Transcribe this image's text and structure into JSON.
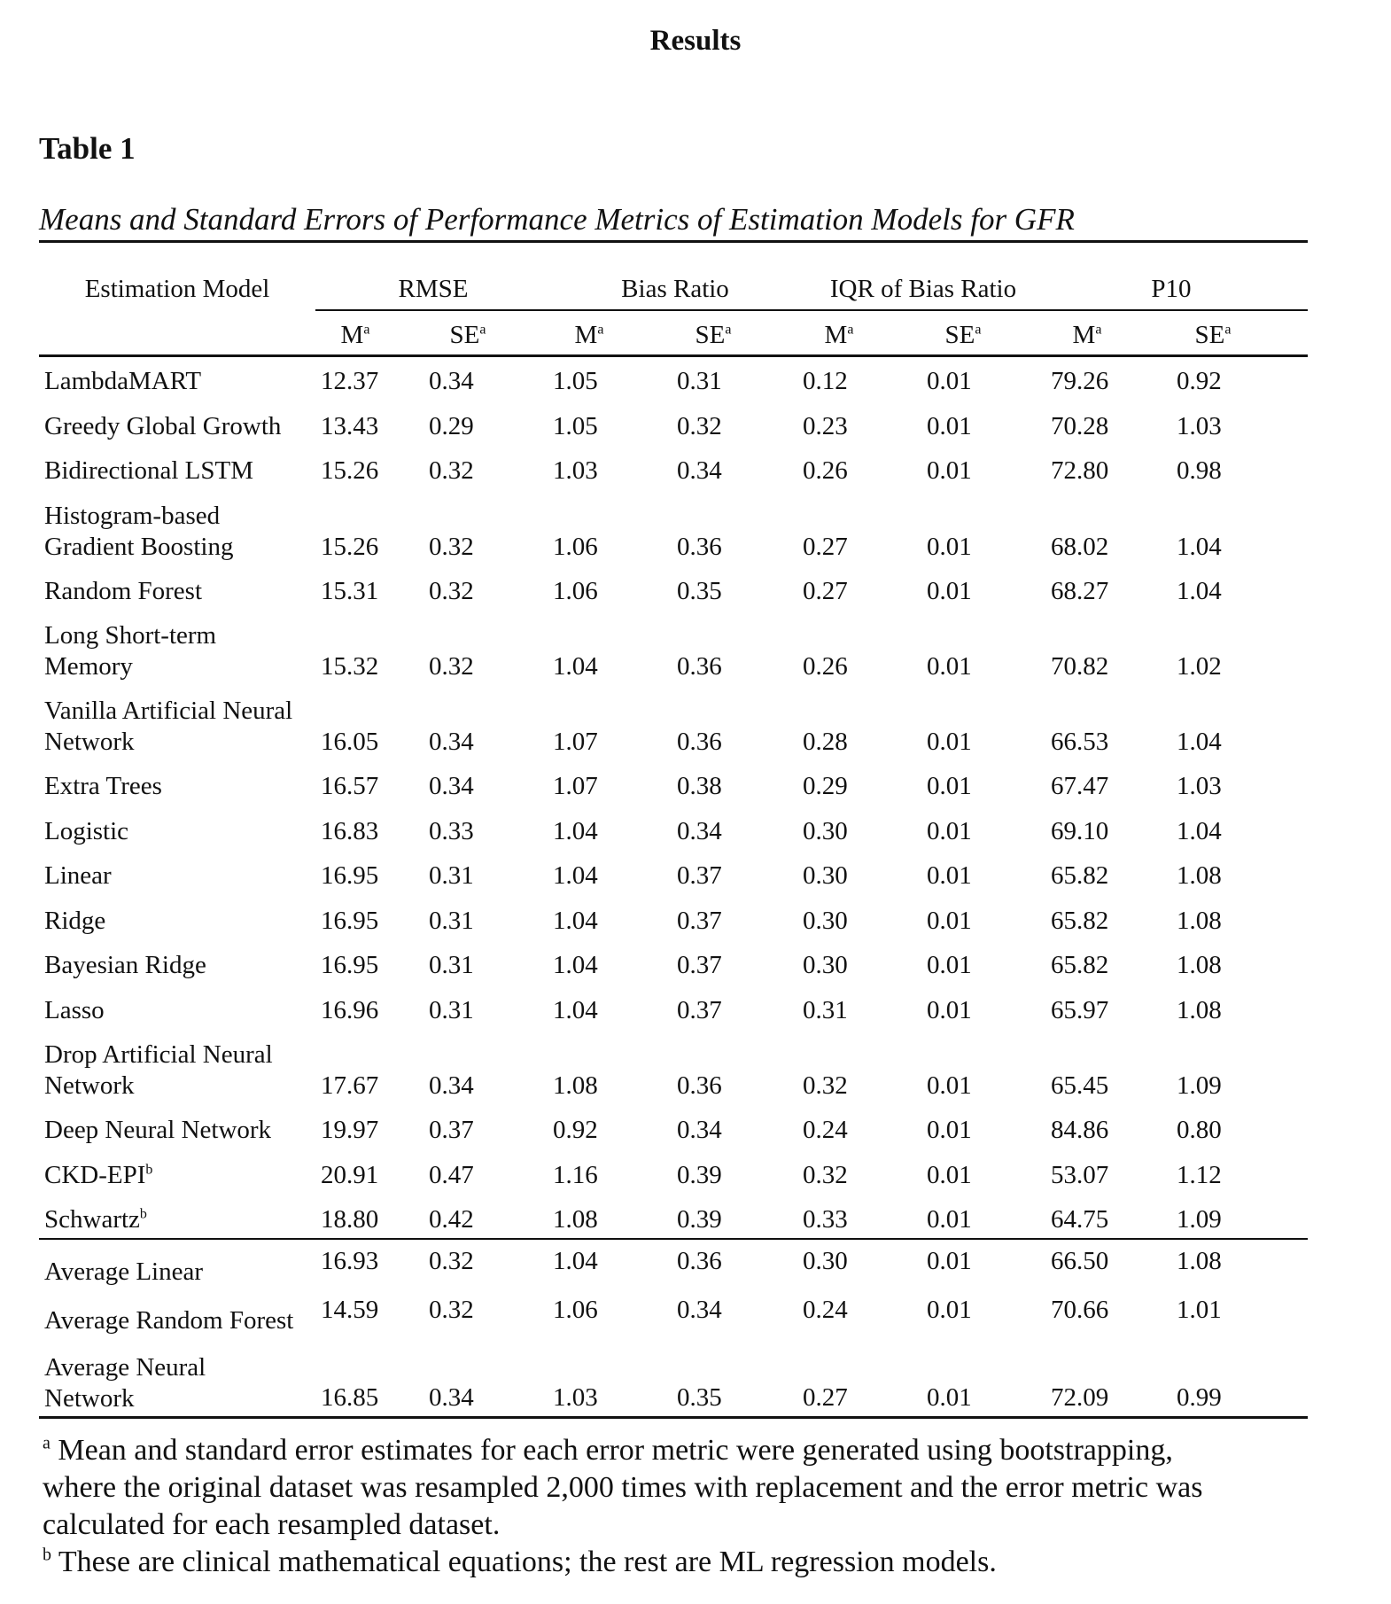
{
  "page_heading": "Results",
  "table_label": "Table 1",
  "table_title": "Means and Standard Errors of Performance Metrics of Estimation Models for GFR",
  "column_groups": {
    "model": "Estimation Model",
    "rmse": "RMSE",
    "bias_ratio": "Bias Ratio",
    "iqr": "IQR of Bias Ratio",
    "p10": "P10"
  },
  "subheaders": {
    "mean": "M",
    "se": "SE",
    "mark": "a"
  },
  "rows": [
    {
      "model": [
        "LambdaMART"
      ],
      "mark": "",
      "values": [
        "12.37",
        "0.34",
        "1.05",
        "0.31",
        "0.12",
        "0.01",
        "79.26",
        "0.92"
      ]
    },
    {
      "model": [
        "Greedy Global Growth"
      ],
      "mark": "",
      "values": [
        "13.43",
        "0.29",
        "1.05",
        "0.32",
        "0.23",
        "0.01",
        "70.28",
        "1.03"
      ]
    },
    {
      "model": [
        "Bidirectional LSTM"
      ],
      "mark": "",
      "values": [
        "15.26",
        "0.32",
        "1.03",
        "0.34",
        "0.26",
        "0.01",
        "72.80",
        "0.98"
      ]
    },
    {
      "model": [
        "Histogram-based",
        "Gradient Boosting"
      ],
      "mark": "",
      "values": [
        "15.26",
        "0.32",
        "1.06",
        "0.36",
        "0.27",
        "0.01",
        "68.02",
        "1.04"
      ]
    },
    {
      "model": [
        "Random Forest"
      ],
      "mark": "",
      "values": [
        "15.31",
        "0.32",
        "1.06",
        "0.35",
        "0.27",
        "0.01",
        "68.27",
        "1.04"
      ]
    },
    {
      "model": [
        "Long Short-term",
        "Memory"
      ],
      "mark": "",
      "values": [
        "15.32",
        "0.32",
        "1.04",
        "0.36",
        "0.26",
        "0.01",
        "70.82",
        "1.02"
      ]
    },
    {
      "model": [
        "Vanilla Artificial Neural",
        "Network"
      ],
      "mark": "",
      "values": [
        "16.05",
        "0.34",
        "1.07",
        "0.36",
        "0.28",
        "0.01",
        "66.53",
        "1.04"
      ]
    },
    {
      "model": [
        "Extra Trees"
      ],
      "mark": "",
      "values": [
        "16.57",
        "0.34",
        "1.07",
        "0.38",
        "0.29",
        "0.01",
        "67.47",
        "1.03"
      ]
    },
    {
      "model": [
        "Logistic"
      ],
      "mark": "",
      "values": [
        "16.83",
        "0.33",
        "1.04",
        "0.34",
        "0.30",
        "0.01",
        "69.10",
        "1.04"
      ]
    },
    {
      "model": [
        "Linear"
      ],
      "mark": "",
      "values": [
        "16.95",
        "0.31",
        "1.04",
        "0.37",
        "0.30",
        "0.01",
        "65.82",
        "1.08"
      ]
    },
    {
      "model": [
        "Ridge"
      ],
      "mark": "",
      "values": [
        "16.95",
        "0.31",
        "1.04",
        "0.37",
        "0.30",
        "0.01",
        "65.82",
        "1.08"
      ]
    },
    {
      "model": [
        "Bayesian Ridge"
      ],
      "mark": "",
      "values": [
        "16.95",
        "0.31",
        "1.04",
        "0.37",
        "0.30",
        "0.01",
        "65.82",
        "1.08"
      ]
    },
    {
      "model": [
        "Lasso"
      ],
      "mark": "",
      "values": [
        "16.96",
        "0.31",
        "1.04",
        "0.37",
        "0.31",
        "0.01",
        "65.97",
        "1.08"
      ]
    },
    {
      "model": [
        "Drop Artificial Neural",
        "Network"
      ],
      "mark": "",
      "values": [
        "17.67",
        "0.34",
        "1.08",
        "0.36",
        "0.32",
        "0.01",
        "65.45",
        "1.09"
      ]
    },
    {
      "model": [
        "Deep Neural Network"
      ],
      "mark": "",
      "values": [
        "19.97",
        "0.37",
        "0.92",
        "0.34",
        "0.24",
        "0.01",
        "84.86",
        "0.80"
      ]
    },
    {
      "model": [
        "CKD-EPI"
      ],
      "mark": "b",
      "values": [
        "20.91",
        "0.47",
        "1.16",
        "0.39",
        "0.32",
        "0.01",
        "53.07",
        "1.12"
      ]
    },
    {
      "model": [
        "Schwartz"
      ],
      "mark": "b",
      "values": [
        "18.80",
        "0.42",
        "1.08",
        "0.39",
        "0.33",
        "0.01",
        "64.75",
        "1.09"
      ]
    }
  ],
  "average_rows": [
    {
      "model": [
        "Average Linear"
      ],
      "mark": "",
      "values": [
        "16.93",
        "0.32",
        "1.04",
        "0.36",
        "0.30",
        "0.01",
        "66.50",
        "1.08"
      ]
    },
    {
      "model": [
        "Average Random Forest"
      ],
      "mark": "",
      "values": [
        "14.59",
        "0.32",
        "1.06",
        "0.34",
        "0.24",
        "0.01",
        "70.66",
        "1.01"
      ]
    },
    {
      "model": [
        "Average Neural",
        "Network"
      ],
      "mark": "",
      "values": [
        "16.85",
        "0.34",
        "1.03",
        "0.35",
        "0.27",
        "0.01",
        "72.09",
        "0.99"
      ]
    }
  ],
  "notes": [
    {
      "mark": "a",
      "lines": [
        "Mean and standard error estimates for each error metric were generated using bootstrapping,",
        "where the original dataset was resampled 2,000 times with replacement and the error metric was",
        "calculated for each resampled dataset."
      ]
    },
    {
      "mark": "b",
      "lines": [
        "These are clinical mathematical equations; the rest are ML regression models."
      ]
    }
  ]
}
